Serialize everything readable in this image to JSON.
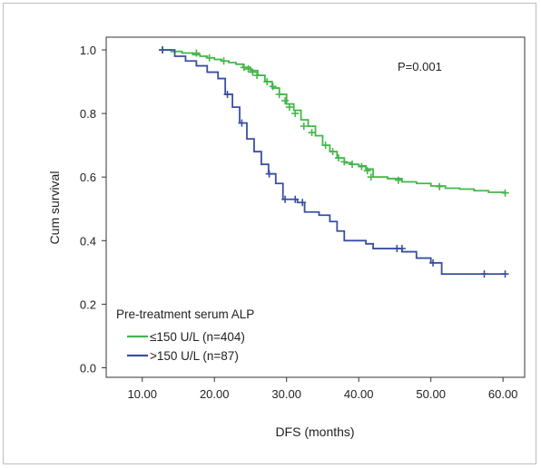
{
  "chart_data": {
    "type": "line",
    "subtype": "kaplan-meier step curves with censor marks",
    "xlabel": "DFS (months)",
    "ylabel": "Cum survival",
    "annotation": "P=0.001",
    "xlim": [
      5,
      63
    ],
    "ylim": [
      -0.03,
      1.04
    ],
    "xticks": [
      "10.00",
      "20.00",
      "30.00",
      "40.00",
      "50.00",
      "60.00"
    ],
    "yticks": [
      "0.0",
      "0.2",
      "0.4",
      "0.6",
      "0.8",
      "1.0"
    ],
    "grid": false,
    "legend": {
      "title": "Pre-treatment serum ALP",
      "placement": "bottom-left"
    },
    "series": [
      {
        "name": "≤150 U/L (n=404)",
        "color": "#43b649",
        "steps": [
          [
            12.5,
            1.0
          ],
          [
            14,
            0.995
          ],
          [
            15.5,
            0.99
          ],
          [
            17,
            0.985
          ],
          [
            18,
            0.98
          ],
          [
            19,
            0.975
          ],
          [
            20,
            0.97
          ],
          [
            21,
            0.965
          ],
          [
            22,
            0.96
          ],
          [
            23,
            0.955
          ],
          [
            24,
            0.945
          ],
          [
            25,
            0.935
          ],
          [
            26,
            0.92
          ],
          [
            27,
            0.9
          ],
          [
            28,
            0.88
          ],
          [
            29,
            0.86
          ],
          [
            30,
            0.83
          ],
          [
            31,
            0.81
          ],
          [
            32,
            0.78
          ],
          [
            33,
            0.76
          ],
          [
            34,
            0.73
          ],
          [
            35,
            0.7
          ],
          [
            36,
            0.68
          ],
          [
            37,
            0.66
          ],
          [
            38,
            0.645
          ],
          [
            39,
            0.64
          ],
          [
            40,
            0.635
          ],
          [
            41,
            0.625
          ],
          [
            42,
            0.6
          ],
          [
            44,
            0.595
          ],
          [
            46,
            0.585
          ],
          [
            48,
            0.58
          ],
          [
            50,
            0.572
          ],
          [
            52,
            0.565
          ],
          [
            54,
            0.562
          ],
          [
            56,
            0.557
          ],
          [
            58,
            0.552
          ],
          [
            60.3,
            0.55
          ]
        ],
        "censored": [
          [
            12.8,
            1.0
          ],
          [
            17.5,
            0.99
          ],
          [
            19.3,
            0.975
          ],
          [
            21.3,
            0.965
          ],
          [
            24.1,
            0.945
          ],
          [
            24.7,
            0.94
          ],
          [
            25.3,
            0.93
          ],
          [
            25.9,
            0.92
          ],
          [
            27.3,
            0.9
          ],
          [
            28.1,
            0.885
          ],
          [
            29.0,
            0.86
          ],
          [
            29.8,
            0.84
          ],
          [
            30.4,
            0.82
          ],
          [
            31.2,
            0.8
          ],
          [
            32.4,
            0.76
          ],
          [
            33.5,
            0.74
          ],
          [
            35.4,
            0.7
          ],
          [
            36.4,
            0.68
          ],
          [
            37.2,
            0.66
          ],
          [
            38.0,
            0.648
          ],
          [
            39.1,
            0.64
          ],
          [
            40.4,
            0.633
          ],
          [
            41.2,
            0.62
          ],
          [
            41.7,
            0.6
          ],
          [
            45.5,
            0.59
          ],
          [
            51.2,
            0.57
          ],
          [
            60.3,
            0.55
          ]
        ]
      },
      {
        "name": ">150 U/L (n=87)",
        "color": "#3a4fa3",
        "steps": [
          [
            12.5,
            1.0
          ],
          [
            14.5,
            0.98
          ],
          [
            16,
            0.965
          ],
          [
            17.5,
            0.95
          ],
          [
            19,
            0.93
          ],
          [
            20.5,
            0.91
          ],
          [
            21.5,
            0.86
          ],
          [
            22.5,
            0.82
          ],
          [
            23.5,
            0.77
          ],
          [
            24.5,
            0.72
          ],
          [
            25.5,
            0.68
          ],
          [
            26.5,
            0.64
          ],
          [
            27.5,
            0.61
          ],
          [
            28.5,
            0.58
          ],
          [
            29.5,
            0.53
          ],
          [
            31.5,
            0.52
          ],
          [
            32.5,
            0.49
          ],
          [
            34.5,
            0.48
          ],
          [
            36.0,
            0.46
          ],
          [
            37.0,
            0.43
          ],
          [
            38.0,
            0.4
          ],
          [
            41.0,
            0.39
          ],
          [
            42.0,
            0.375
          ],
          [
            46.0,
            0.365
          ],
          [
            48.0,
            0.345
          ],
          [
            50.0,
            0.33
          ],
          [
            51.5,
            0.295
          ],
          [
            60.3,
            0.295
          ]
        ],
        "censored": [
          [
            12.8,
            1.0
          ],
          [
            21.8,
            0.86
          ],
          [
            23.8,
            0.77
          ],
          [
            27.6,
            0.61
          ],
          [
            29.8,
            0.53
          ],
          [
            31.2,
            0.53
          ],
          [
            32.2,
            0.52
          ],
          [
            45.3,
            0.375
          ],
          [
            46.0,
            0.375
          ],
          [
            50.3,
            0.33
          ],
          [
            57.4,
            0.295
          ],
          [
            60.3,
            0.295
          ]
        ]
      }
    ]
  }
}
